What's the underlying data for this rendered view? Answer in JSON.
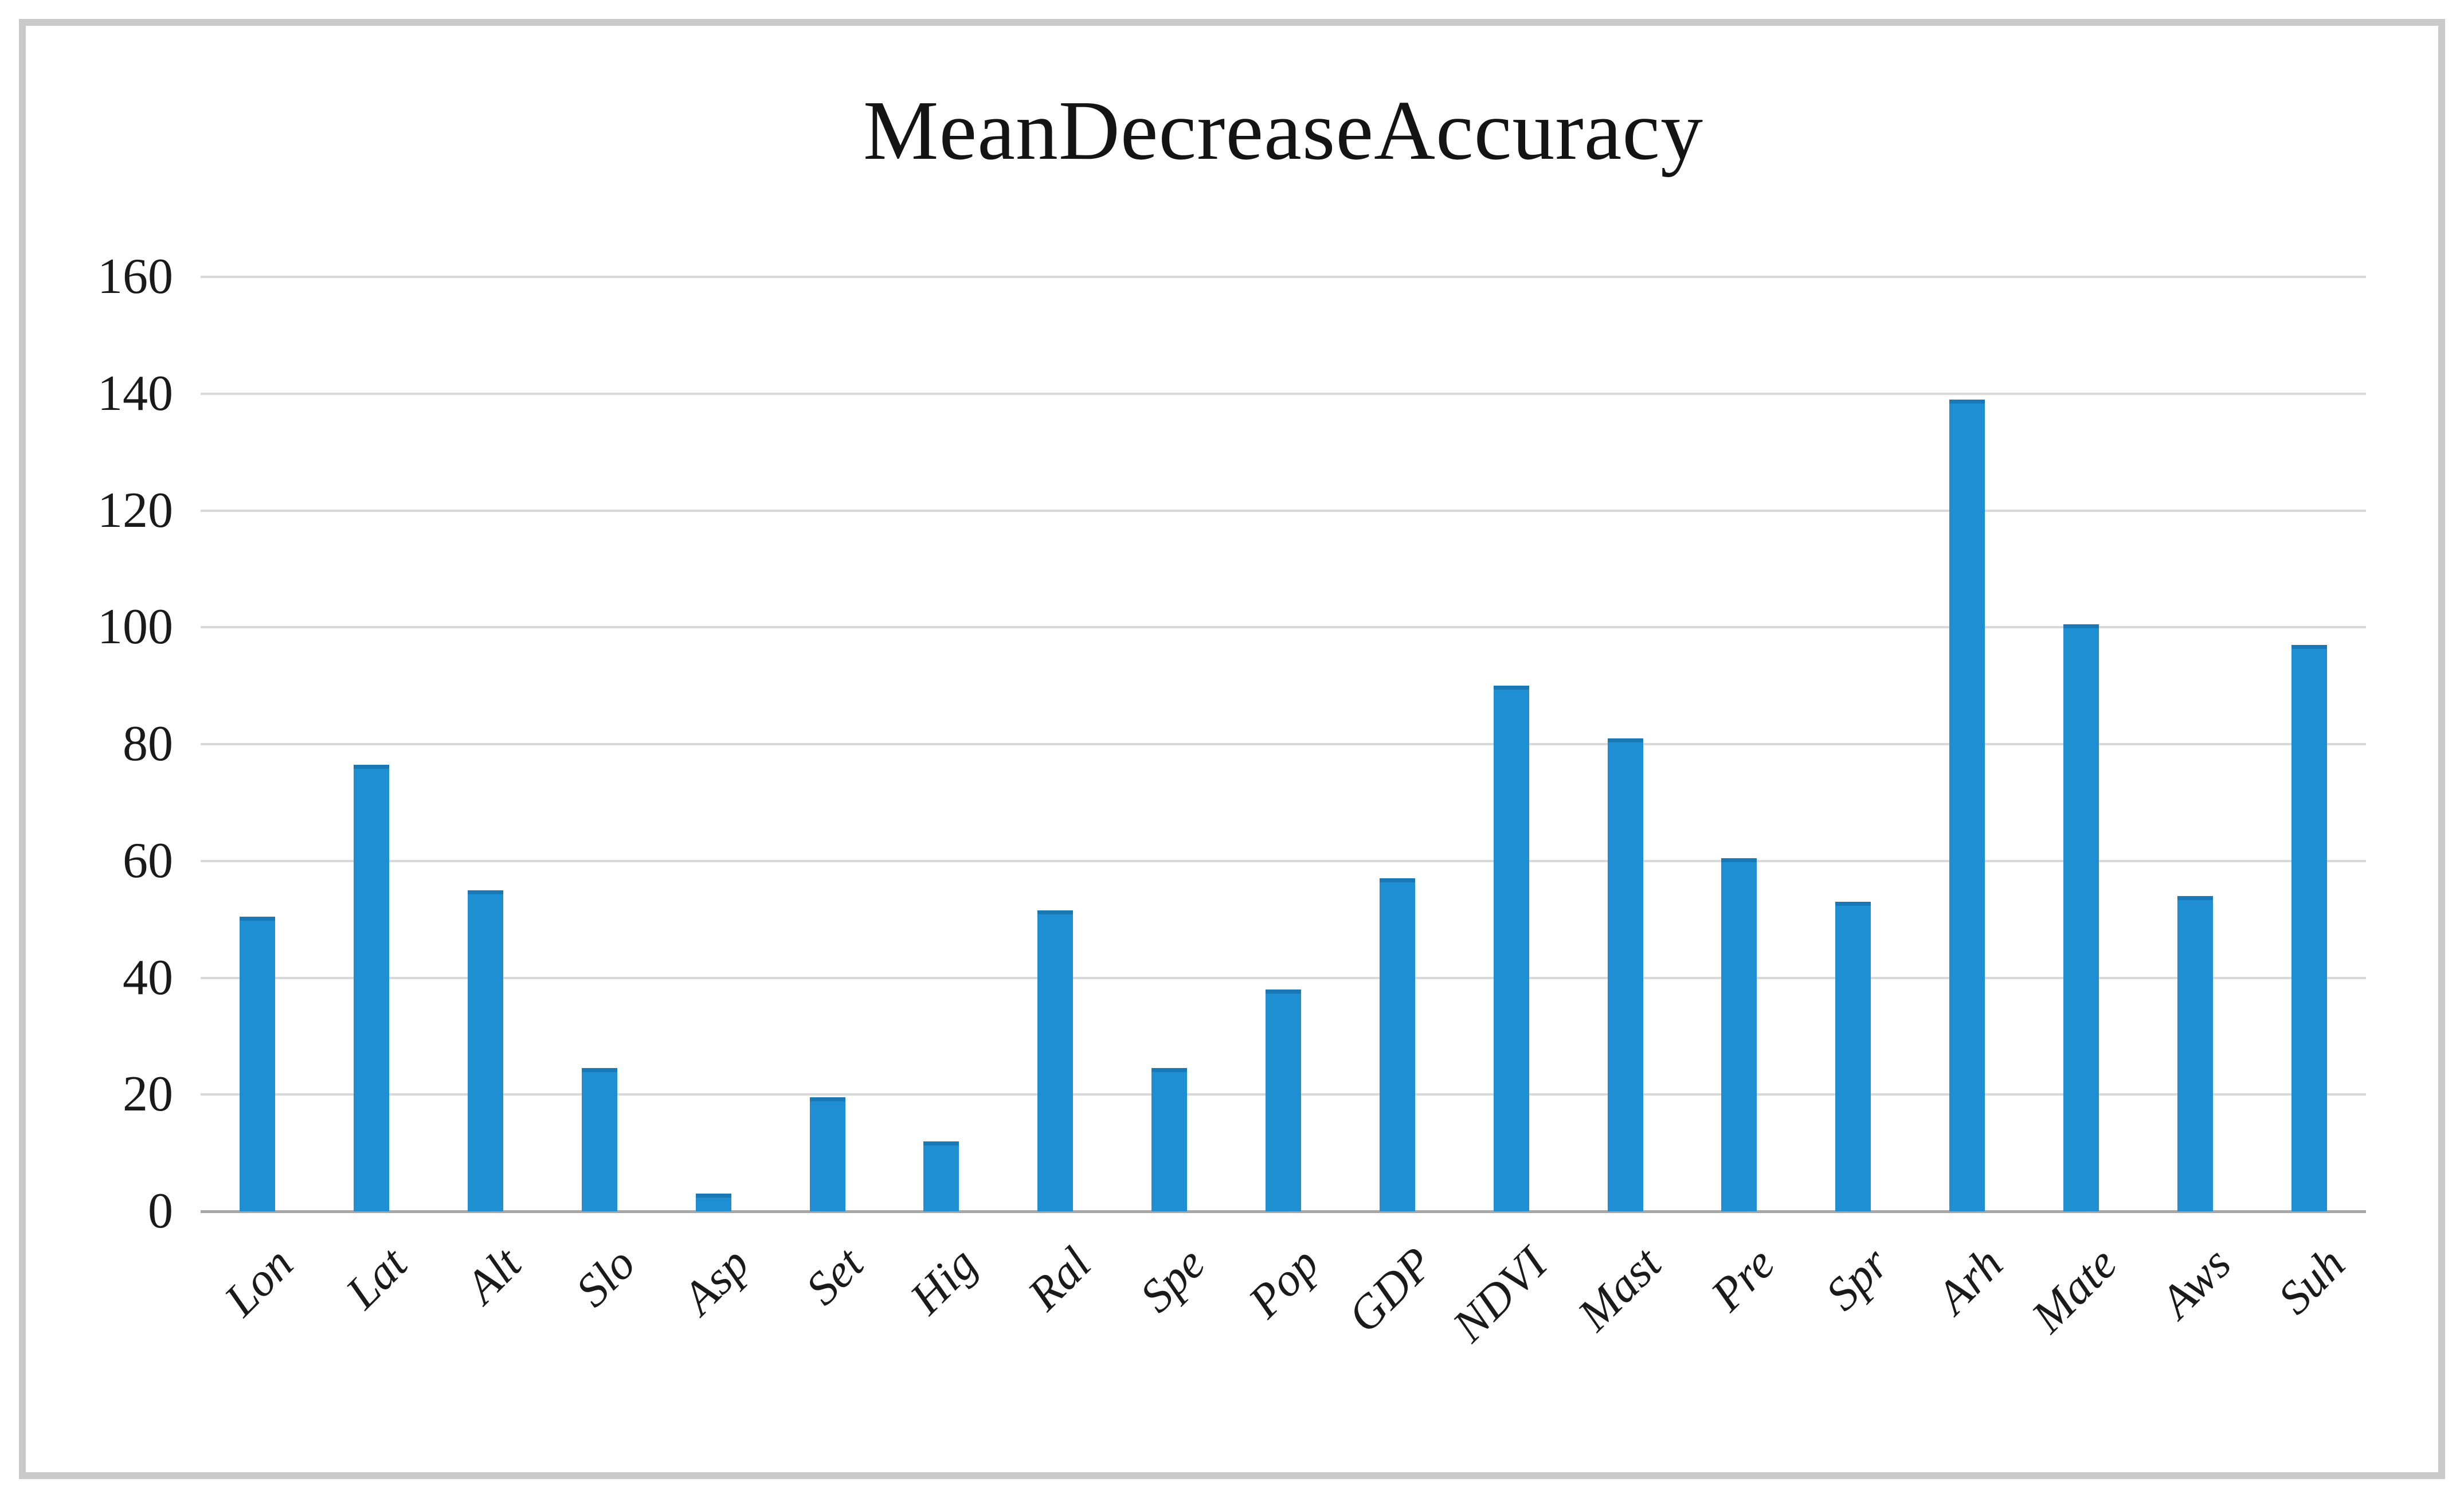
{
  "figure": {
    "background_color": "#ffffff",
    "frame_color": "#cacaca"
  },
  "chart_data": {
    "type": "bar",
    "title": "MeanDecreaseAccuracy",
    "categories": [
      "Lon",
      "Lat",
      "Alt",
      "Slo",
      "Asp",
      "Set",
      "Hig",
      "Ral",
      "Spe",
      "Pop",
      "GDP",
      "NDVI",
      "Mast",
      "Pre",
      "Spr",
      "Arh",
      "Mate",
      "Aws",
      "Suh"
    ],
    "values": [
      50.5,
      76.5,
      55,
      24.5,
      3,
      19.5,
      12,
      51.5,
      24.5,
      38,
      57,
      90,
      81,
      60.5,
      53,
      139,
      100.5,
      54,
      97
    ],
    "xlabel": "",
    "ylabel": "",
    "ylim": [
      0,
      160
    ],
    "ytick_step": 20,
    "ytick_labels": [
      "0",
      "20",
      "40",
      "60",
      "80",
      "100",
      "120",
      "140",
      "160"
    ],
    "grid": true,
    "legend_position": "none",
    "bar_color": "#1e8fd2",
    "bar_top_edge_color": "#1a78b4",
    "gridline_color": "#d9d9d9",
    "axis_line_color": "#a6a6a6",
    "text_color": "#1a1a1a"
  }
}
